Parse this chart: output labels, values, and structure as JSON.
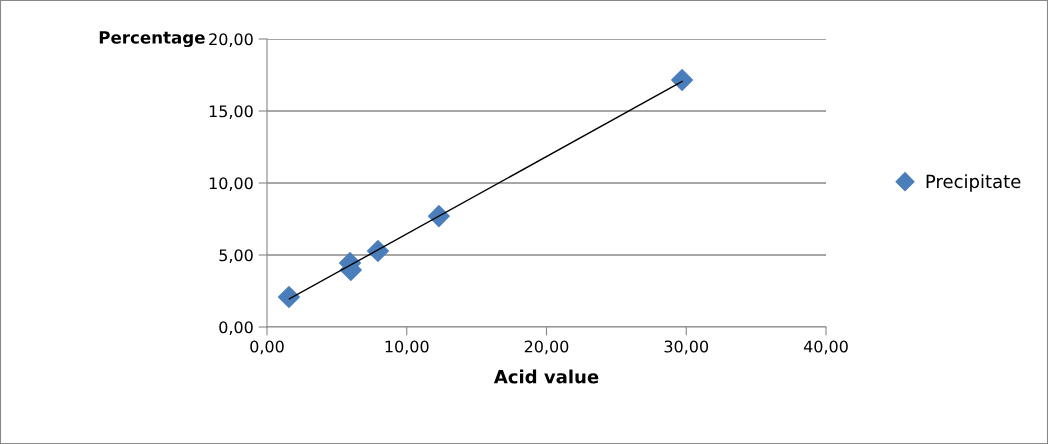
{
  "chart_data": {
    "type": "scatter",
    "xlabel": "Acid value",
    "ylabel": "Percentage",
    "series": [
      {
        "name": "Precipitate",
        "color": "#4a7ebb",
        "marker": "diamond",
        "x": [
          1.57,
          5.94,
          6.0,
          7.94,
          12.3,
          29.7
        ],
        "values": [
          2.08,
          4.44,
          3.96,
          5.28,
          7.7,
          17.15
        ]
      },
      {
        "type": "line",
        "color": "#000000",
        "marker": "none",
        "line_style": "solid",
        "x": [
          1.6,
          29.7
        ],
        "values": [
          1.95,
          17.05
        ]
      }
    ],
    "xlim": [
      0,
      40
    ],
    "xticks": [
      {
        "value": 0,
        "label": "0,00"
      },
      {
        "value": 10,
        "label": "10,00"
      },
      {
        "value": 20,
        "label": "20,00"
      },
      {
        "value": 30,
        "label": "30,00"
      },
      {
        "value": 40,
        "label": "40,00"
      }
    ],
    "ylim": [
      0,
      20
    ],
    "yticks": [
      {
        "value": 0,
        "label": "0,00"
      },
      {
        "value": 5,
        "label": "5,00"
      },
      {
        "value": 10,
        "label": "10,00"
      },
      {
        "value": 15,
        "label": "15,00"
      },
      {
        "value": 20,
        "label": "20,00"
      }
    ],
    "grid": "y",
    "legend": "right"
  }
}
